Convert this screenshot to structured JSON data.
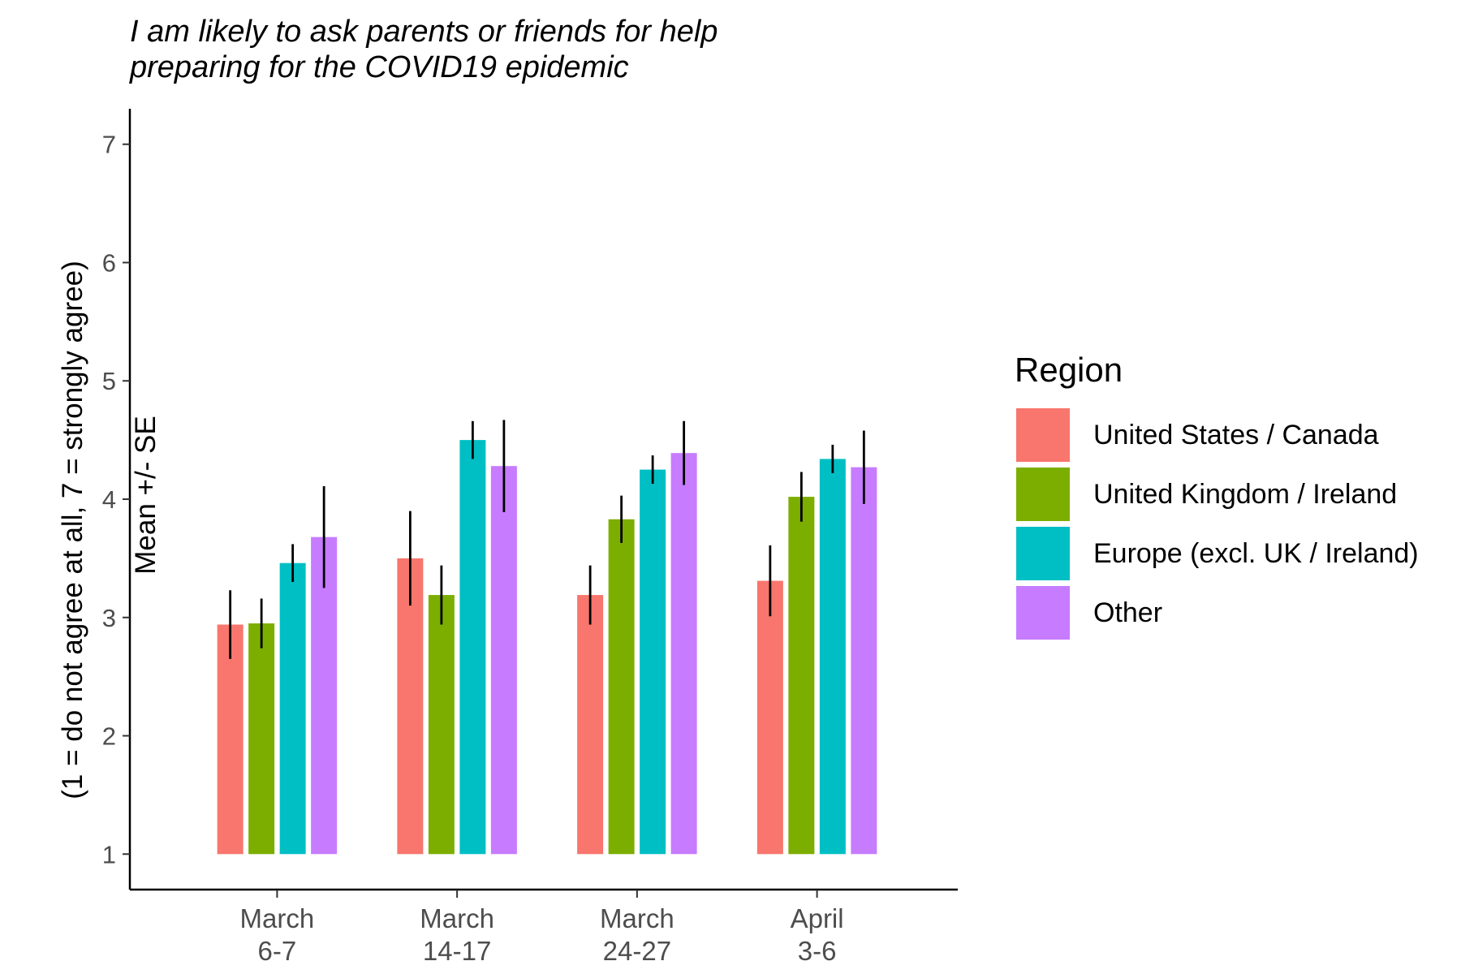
{
  "chart_data": {
    "type": "bar",
    "title": "I am likely to ask parents or friends for help preparing for the COVID19 epidemic",
    "title_lines": [
      "I am likely to ask parents or friends for help",
      "preparing for the COVID19 epidemic"
    ],
    "xlabel": "",
    "ylabel_lines": [
      "Mean +/- SE",
      "(1 = do not agree at all, 7 = strongly agree)"
    ],
    "categories": [
      [
        "March",
        "6-7"
      ],
      [
        "March",
        "14-17"
      ],
      [
        "March",
        "24-27"
      ],
      [
        "April",
        "3-6"
      ]
    ],
    "ylim": [
      0.7,
      7.3
    ],
    "bar_base": 1,
    "yticks": [
      1,
      2,
      3,
      4,
      5,
      6,
      7
    ],
    "legend_title": "Region",
    "legend_position": "right",
    "grid": false,
    "series": [
      {
        "name": "United States / Canada",
        "color": "#F8766D",
        "values": [
          2.94,
          3.5,
          3.19,
          3.31
        ],
        "se": [
          0.29,
          0.4,
          0.25,
          0.3
        ]
      },
      {
        "name": "United Kingdom / Ireland",
        "color": "#7CAE00",
        "values": [
          2.95,
          3.19,
          3.83,
          4.02
        ],
        "se": [
          0.21,
          0.25,
          0.2,
          0.21
        ]
      },
      {
        "name": "Europe (excl. UK / Ireland)",
        "color": "#00BFC4",
        "values": [
          3.46,
          4.5,
          4.25,
          4.34
        ],
        "se": [
          0.16,
          0.16,
          0.12,
          0.12
        ]
      },
      {
        "name": "Other",
        "color": "#C77CFF",
        "values": [
          3.68,
          4.28,
          4.39,
          4.27
        ],
        "se": [
          0.43,
          0.39,
          0.27,
          0.31
        ]
      }
    ]
  }
}
